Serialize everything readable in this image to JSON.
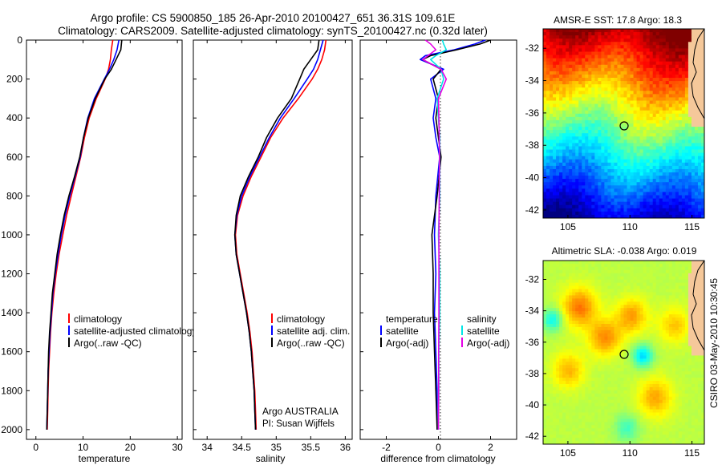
{
  "header": {
    "title_line1": "Argo profile: CS 5900850_185 26-Apr-2010 20100427_651 36.31S 109.61E",
    "title_line2": "Climatology: CARS2009. Satellite-adjusted climatology: synTS_20100427.nc (0.32d later)"
  },
  "footer": {
    "credit": "CSIRO 03-May-2010 10:30:45"
  },
  "colors": {
    "climatology": "#ff0000",
    "satellite": "#0000ff",
    "argo": "#000000",
    "sal_satellite": "#00e5e5",
    "sal_argo": "#e500e5"
  },
  "chart_data": [
    {
      "type": "line",
      "id": "temperature",
      "xlabel": "temperature",
      "xlim": [
        -2,
        31
      ],
      "ylim": [
        2050,
        0
      ],
      "xticks": [
        0,
        10,
        20,
        30
      ],
      "yticks": [
        0,
        200,
        400,
        600,
        800,
        1000,
        1200,
        1400,
        1600,
        1800,
        2000
      ],
      "legend": [
        "climatology",
        "satellite-adjusted climatology",
        "Argo(..raw -QC)"
      ],
      "depth": [
        0,
        50,
        100,
        150,
        200,
        300,
        400,
        500,
        600,
        700,
        800,
        900,
        1000,
        1100,
        1200,
        1300,
        1400,
        1500,
        1600,
        1700,
        1800,
        1900,
        2000
      ],
      "series": [
        {
          "name": "climatology",
          "values": [
            16.3,
            16.0,
            15.8,
            15.4,
            14.7,
            12.8,
            11.3,
            10.3,
            9.5,
            8.5,
            7.5,
            6.5,
            5.7,
            4.9,
            4.3,
            3.8,
            3.4,
            3.1,
            2.9,
            2.7,
            2.6,
            2.5,
            2.4
          ]
        },
        {
          "name": "satellite-adjusted climatology",
          "values": [
            17.6,
            17.2,
            16.5,
            15.6,
            14.5,
            12.4,
            11.0,
            10.1,
            9.4,
            8.3,
            7.2,
            6.2,
            5.4,
            4.7,
            4.1,
            3.6,
            3.3,
            3.0,
            2.8,
            2.6,
            2.5,
            2.4,
            2.3
          ]
        },
        {
          "name": "Argo(..raw -QC)",
          "values": [
            18.2,
            18.0,
            17.0,
            16.0,
            14.6,
            12.6,
            11.1,
            10.1,
            9.3,
            8.2,
            7.0,
            6.0,
            5.2,
            4.5,
            4.0,
            3.5,
            3.2,
            2.9,
            2.7,
            2.6,
            2.5,
            2.4,
            2.3
          ]
        }
      ]
    },
    {
      "type": "line",
      "id": "salinity",
      "xlabel": "salinity",
      "xlim": [
        33.8,
        36.1
      ],
      "ylim": [
        2050,
        0
      ],
      "xticks": [
        34,
        34.5,
        35,
        35.5,
        36
      ],
      "legend": [
        "climatology",
        "satellite adj. clim.",
        "Argo(..raw -QC)"
      ],
      "annotation_line1": "Argo AUSTRALIA",
      "annotation_line2": "PI: Susan Wijffels",
      "depth": [
        0,
        50,
        100,
        150,
        200,
        300,
        400,
        500,
        600,
        700,
        800,
        900,
        1000,
        1100,
        1200,
        1300,
        1400,
        1500,
        1600,
        1700,
        1800,
        1900,
        2000
      ],
      "series": [
        {
          "name": "climatology",
          "values": [
            35.72,
            35.7,
            35.66,
            35.6,
            35.52,
            35.32,
            35.1,
            34.92,
            34.78,
            34.64,
            34.52,
            34.44,
            34.41,
            34.43,
            34.48,
            34.53,
            34.58,
            34.62,
            34.65,
            34.67,
            34.69,
            34.7,
            34.71
          ]
        },
        {
          "name": "satellite adj. clim.",
          "values": [
            35.68,
            35.64,
            35.6,
            35.54,
            35.45,
            35.26,
            35.06,
            34.9,
            34.76,
            34.62,
            34.5,
            34.43,
            34.4,
            34.42,
            34.47,
            34.52,
            34.57,
            34.61,
            34.64,
            34.66,
            34.68,
            34.69,
            34.7
          ]
        },
        {
          "name": "Argo(..raw -QC)",
          "values": [
            35.62,
            35.6,
            35.5,
            35.4,
            35.34,
            35.22,
            35.02,
            34.86,
            34.74,
            34.6,
            34.48,
            34.42,
            34.4,
            34.42,
            34.47,
            34.52,
            34.57,
            34.61,
            34.64,
            34.66,
            34.68,
            34.69,
            34.7
          ]
        }
      ]
    },
    {
      "type": "line",
      "id": "difference",
      "xlabel": "difference from climatology",
      "xlim": [
        -3,
        3
      ],
      "ylim": [
        2050,
        0
      ],
      "xticks": [
        -2,
        0,
        2
      ],
      "legend_temperature": [
        "temperature",
        "satellite",
        "Argo(-adj)"
      ],
      "legend_salinity": [
        "salinity",
        "satellite",
        "Argo(-adj)"
      ],
      "depth": [
        0,
        20,
        50,
        80,
        100,
        150,
        200,
        300,
        400,
        500,
        600,
        800,
        1000,
        1200,
        1400,
        1600,
        1800,
        2000
      ],
      "series": [
        {
          "name": "temperature satellite",
          "values": [
            1.8,
            1.4,
            0.6,
            -0.5,
            -0.7,
            0.2,
            -0.3,
            -0.1,
            -0.2,
            -0.1,
            0.05,
            -0.1,
            -0.15,
            -0.1,
            -0.15,
            -0.1,
            -0.05,
            -0.05
          ]
        },
        {
          "name": "temperature Argo(-adj)",
          "values": [
            2.0,
            1.6,
            0.7,
            -0.3,
            -0.6,
            0.1,
            -0.2,
            0.0,
            -0.1,
            0.0,
            0.1,
            -0.05,
            -0.25,
            -0.2,
            -0.2,
            -0.15,
            -0.1,
            -0.05
          ]
        },
        {
          "name": "salinity satellite",
          "values": [
            0.15,
            0.2,
            0.3,
            -0.1,
            -0.3,
            0.1,
            0.2,
            -0.05,
            0.0,
            0.05,
            0.05,
            0.05,
            0.0,
            0.05,
            0.05,
            0.02,
            0.02,
            0.0
          ]
        },
        {
          "name": "salinity Argo(-adj)",
          "values": [
            -0.5,
            -0.3,
            -0.1,
            -0.4,
            -0.6,
            0.1,
            0.3,
            0.0,
            0.02,
            0.03,
            0.04,
            0.03,
            0.02,
            0.02,
            0.02,
            0.01,
            0.01,
            0.0
          ]
        }
      ]
    },
    {
      "type": "heatmap",
      "id": "sst_map",
      "title": "AMSR-E SST: 17.8 Argo: 18.3",
      "xlim": [
        103,
        116
      ],
      "ylim": [
        -42.5,
        -30.8
      ],
      "xticks": [
        105,
        110,
        115
      ],
      "yticks": [
        -32,
        -34,
        -36,
        -38,
        -40,
        -42
      ],
      "marker": [
        109.61,
        -36.31
      ]
    },
    {
      "type": "heatmap",
      "id": "sla_map",
      "title": "Altimetric SLA: -0.038 Argo: 0.019",
      "xlim": [
        103,
        116
      ],
      "ylim": [
        -42.5,
        -30.8
      ],
      "xticks": [
        105,
        110,
        115
      ],
      "yticks": [
        -32,
        -34,
        -36,
        -38,
        -40,
        -42
      ],
      "marker": [
        109.61,
        -36.31
      ]
    }
  ]
}
